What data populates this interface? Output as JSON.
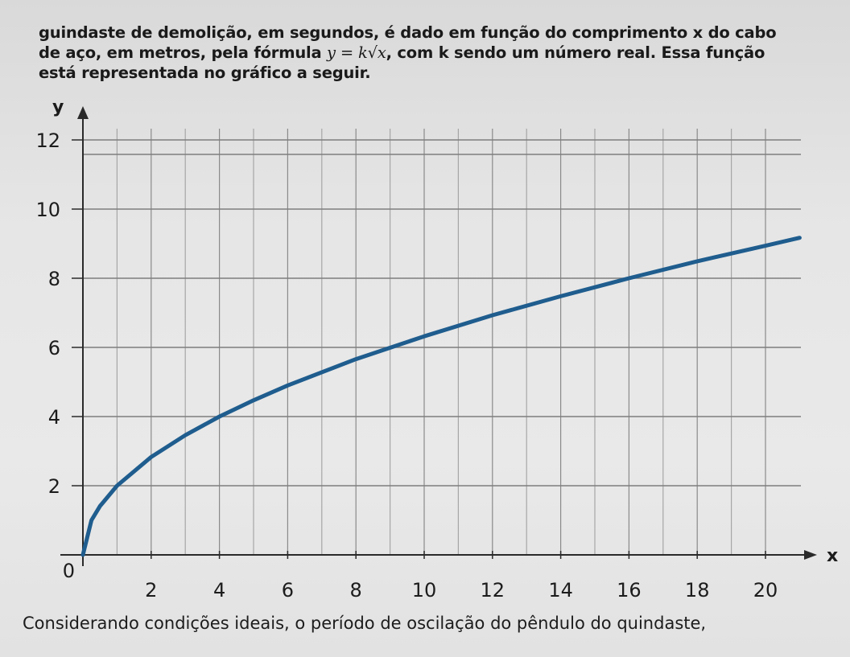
{
  "text": {
    "line1": "guindaste de demolição, em segundos, é dado em função do comprimento x do cabo",
    "line2_pre": "de aço, em metros, pela fórmula ",
    "formula": "y = k√x",
    "line2_post": ", com k sendo um número real. Essa função",
    "line3": "está representada no gráfico a seguir.",
    "caption": "Considerando condições ideais, o período de oscilação do pêndulo do quindaste,"
  },
  "chart_data": {
    "type": "line",
    "xlabel": "x",
    "ylabel": "y",
    "xlim": [
      0,
      21
    ],
    "ylim": [
      0,
      12
    ],
    "x_ticks": [
      2,
      4,
      6,
      8,
      10,
      12,
      14,
      16,
      18,
      20
    ],
    "y_ticks": [
      2,
      4,
      6,
      8,
      10,
      12
    ],
    "origin_label": "0",
    "grid": true,
    "series": [
      {
        "color": "#1f5d8e",
        "x": [
          0,
          0.25,
          0.5,
          1,
          2,
          3,
          4,
          5,
          6,
          8,
          10,
          12,
          14,
          16,
          18,
          20,
          21
        ],
        "y": [
          0,
          1.0,
          1.41,
          2.0,
          2.83,
          3.46,
          4.0,
          4.47,
          4.9,
          5.66,
          6.32,
          6.93,
          7.48,
          8.0,
          8.49,
          8.94,
          9.17
        ]
      }
    ]
  }
}
